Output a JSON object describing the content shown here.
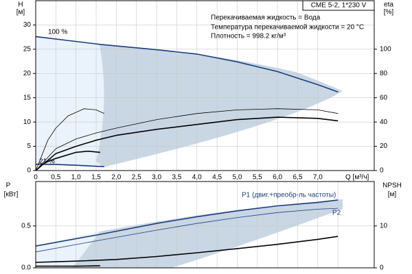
{
  "chart_data": [
    {
      "type": "line",
      "title": "CME 5-2, 1*230 V",
      "notes": [
        "Перекачиваемая жидкость = Вода",
        "Температура перекачиваемой жидкости = 20 °C",
        "Плотность = 998.2 кг/м³"
      ],
      "annotations": [
        "100 %",
        "21 %"
      ],
      "y_label": "H",
      "y_unit": "[м]",
      "y2_label": "eta",
      "y2_unit": "[%]",
      "x_label": "Q [м³/ч]",
      "xlim": [
        0,
        8.4
      ],
      "xticks": [
        0,
        {
          "value": 0.5,
          "label": "0,5"
        },
        {
          "value": 1,
          "label": "1,0"
        },
        {
          "value": 1.5,
          "label": "1,5"
        },
        {
          "value": 2,
          "label": "2,0"
        },
        {
          "value": 2.5,
          "label": "2,5"
        },
        {
          "value": 3,
          "label": "3,0"
        },
        {
          "value": 3.5,
          "label": "3,5"
        },
        {
          "value": 4,
          "label": "4,0"
        },
        {
          "value": 4.5,
          "label": "4,5"
        },
        {
          "value": 5,
          "label": "5,0"
        },
        {
          "value": 5.5,
          "label": "5,5"
        },
        {
          "value": 6,
          "label": "6,0"
        },
        {
          "value": 6.5,
          "label": "6,5"
        },
        {
          "value": 7,
          "label": "7,0"
        }
      ],
      "ylim": [
        0,
        35
      ],
      "yticks": [
        0,
        5,
        10,
        15,
        20,
        25,
        30
      ],
      "y2lim": [
        0,
        140
      ],
      "y2ticks": [
        0,
        20,
        40,
        60,
        80,
        100
      ],
      "grid": true,
      "series": [
        {
          "color": "#1a3d7c",
          "style": "thick",
          "x": [
            0,
            1.6,
            3,
            4,
            5,
            6,
            7,
            7.5
          ],
          "values": [
            27.6,
            26.0,
            24.9,
            24.0,
            22.4,
            20.4,
            17.7,
            16.2
          ]
        },
        {
          "color": "#1a3d7c",
          "style": "thick",
          "x": [
            0,
            0.5,
            1,
            1.7
          ],
          "values": [
            1.3,
            1.25,
            1.1,
            0.8
          ]
        },
        {
          "color": "#000000",
          "style": "thick",
          "axis": "y2",
          "x": [
            0,
            0.5,
            1,
            1.5,
            2,
            3,
            4,
            5,
            6,
            7,
            7.5
          ],
          "values": [
            0,
            14,
            20,
            25,
            29,
            34,
            38,
            42,
            44,
            43,
            41
          ]
        },
        {
          "color": "#000000",
          "style": "thin",
          "axis": "y2",
          "x": [
            0,
            0.5,
            1,
            1.5,
            2,
            3,
            4,
            5,
            6,
            7,
            7.5
          ],
          "values": [
            0,
            18,
            26,
            31,
            35,
            42,
            47,
            50,
            51,
            50,
            47
          ]
        },
        {
          "color": "#000000",
          "style": "thick",
          "axis": "y2",
          "x": [
            0.2,
            0.5,
            1,
            1.3,
            1.6
          ],
          "values": [
            6,
            10,
            15,
            16,
            15
          ]
        },
        {
          "color": "#000000",
          "style": "thin",
          "axis": "y2",
          "x": [
            0,
            0.1,
            0.3,
            0.5,
            0.8,
            1.2,
            1.5,
            1.7
          ],
          "values": [
            0,
            8,
            25,
            35,
            45,
            51,
            50,
            47
          ]
        }
      ]
    },
    {
      "type": "line",
      "y_label": "P",
      "y_unit": "[кВт]",
      "y2_label": "NPSH",
      "y2_unit": "[м]",
      "xlim": [
        0,
        8.4
      ],
      "xticks": [
        0,
        0.5,
        1,
        1.5,
        2,
        2.5,
        3,
        3.5,
        4,
        4.5,
        5,
        5.5,
        6,
        6.5,
        7,
        7.5
      ],
      "ylim": [
        0,
        1.03
      ],
      "yticks": [
        {
          "value": 0,
          "label": "0.0"
        },
        0.5
      ],
      "y2lim": [
        0,
        20.6
      ],
      "y2ticks": [
        0,
        10
      ],
      "grid": true,
      "series": [
        {
          "name": "P1 (двиг.+преобр-ль частоты)",
          "color": "#1a3d7c",
          "style": "thick",
          "x": [
            0,
            1.6,
            3,
            4,
            5,
            6,
            7,
            7.5
          ],
          "values": [
            0.26,
            0.4,
            0.53,
            0.61,
            0.68,
            0.74,
            0.78,
            0.81
          ]
        },
        {
          "name": "P2",
          "color": "#1a3d7c",
          "style": "thin",
          "x": [
            0,
            1.6,
            3,
            4,
            5,
            6,
            7,
            7.5
          ],
          "values": [
            0.19,
            0.33,
            0.45,
            0.53,
            0.6,
            0.66,
            0.7,
            0.71
          ]
        },
        {
          "color": "#000000",
          "style": "thick",
          "axis": "y2",
          "x": [
            0,
            1,
            2,
            3,
            4,
            5,
            6,
            7,
            7.5
          ],
          "values": [
            1.3,
            1.6,
            2.0,
            2.7,
            3.6,
            4.6,
            5.6,
            6.8,
            7.5
          ]
        },
        {
          "color": "#000000",
          "style": "thick",
          "x": [
            0,
            0.5,
            1,
            1.6
          ],
          "values": [
            0.02,
            0.02,
            0.02,
            0.025
          ]
        }
      ]
    }
  ]
}
